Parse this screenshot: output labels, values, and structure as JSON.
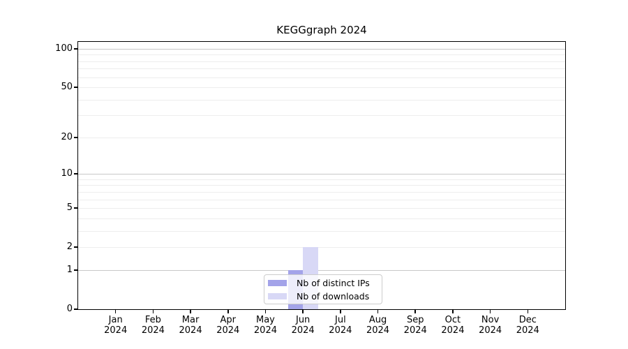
{
  "chart_data": {
    "type": "bar",
    "title": "KEGGgraph 2024",
    "x_axis": {
      "categories": [
        "Jan 2024",
        "Feb 2024",
        "Mar 2024",
        "Apr 2024",
        "May 2024",
        "Jun 2024",
        "Jul 2024",
        "Aug 2024",
        "Sep 2024",
        "Oct 2024",
        "Nov 2024",
        "Dec 2024"
      ],
      "labels_line1": [
        "Jan",
        "Feb",
        "Mar",
        "Apr",
        "May",
        "Jun",
        "Jul",
        "Aug",
        "Sep",
        "Oct",
        "Nov",
        "Dec"
      ],
      "labels_line2": [
        "2024",
        "2024",
        "2024",
        "2024",
        "2024",
        "2024",
        "2024",
        "2024",
        "2024",
        "2024",
        "2024",
        "2024"
      ]
    },
    "y_axis": {
      "scale": "log10(1+x)",
      "min": 0,
      "max": 113,
      "ticks": [
        0,
        1,
        2,
        5,
        10,
        20,
        50,
        100
      ],
      "major_gridlines": [
        1,
        10,
        100
      ],
      "minor_gridlines": [
        2,
        3,
        4,
        5,
        6,
        7,
        8,
        9,
        20,
        30,
        40,
        50,
        60,
        70,
        80,
        90
      ]
    },
    "series": [
      {
        "name": "Nb of distinct IPs",
        "color": "#a3a3e9",
        "values": [
          0,
          0,
          0,
          0,
          0,
          1,
          0,
          0,
          0,
          0,
          0,
          0
        ]
      },
      {
        "name": "Nb of downloads",
        "color": "#d8d8f6",
        "values": [
          0,
          0,
          0,
          0,
          0,
          2,
          0,
          0,
          0,
          0,
          0,
          0
        ]
      }
    ],
    "legend_position": "bottom-center",
    "grid": "horizontal-only"
  },
  "colors": {
    "background": "#ffffff",
    "spine": "#000000",
    "major_gridline": "#c8c8c8",
    "minor_gridline": "#ededed",
    "legend_border": "#cccccc",
    "text": "#000000"
  }
}
